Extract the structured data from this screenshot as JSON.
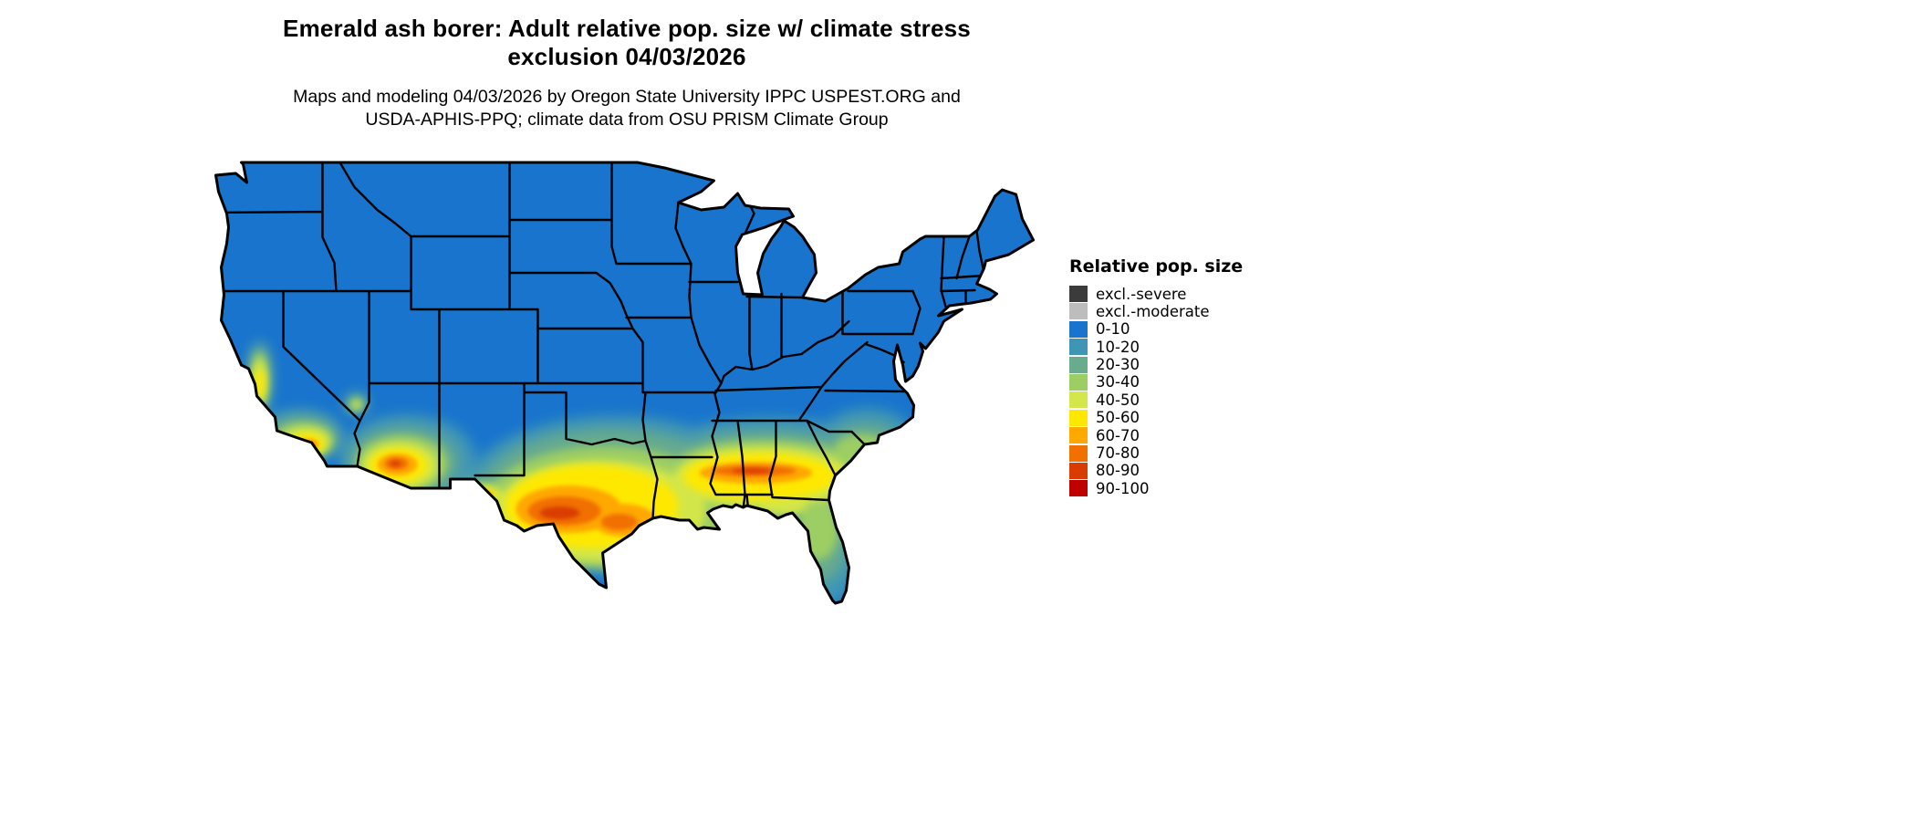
{
  "title": {
    "line1": "Emerald ash borer: Adult relative pop. size w/ climate stress",
    "line2": "exclusion 04/03/2026"
  },
  "subtitle": {
    "line1": "Maps and modeling 04/03/2026 by Oregon State University IPPC USPEST.ORG and",
    "line2": "USDA-APHIS-PPQ; climate data from OSU PRISM Climate Group"
  },
  "map": {
    "description": "Continental United States gridded map of emerald ash borer adult relative population size with climate stress exclusion",
    "land_base_color": "#1874cd",
    "state_border_color": "#000000",
    "background_color": "#ffffff"
  },
  "legend": {
    "title": "Relative pop. size",
    "items": [
      {
        "label": "excl.-severe",
        "color": "#3b3b3b"
      },
      {
        "label": "excl.-moderate",
        "color": "#bdbdbd"
      },
      {
        "label": "0-10",
        "color": "#1874cd"
      },
      {
        "label": "10-20",
        "color": "#3f96b4"
      },
      {
        "label": "20-30",
        "color": "#68ab8d"
      },
      {
        "label": "30-40",
        "color": "#9cce63"
      },
      {
        "label": "40-50",
        "color": "#d3e64a"
      },
      {
        "label": "50-60",
        "color": "#ffe800"
      },
      {
        "label": "60-70",
        "color": "#ffa800"
      },
      {
        "label": "70-80",
        "color": "#f17000"
      },
      {
        "label": "80-90",
        "color": "#d93c00"
      },
      {
        "label": "90-100",
        "color": "#c00000"
      }
    ]
  }
}
